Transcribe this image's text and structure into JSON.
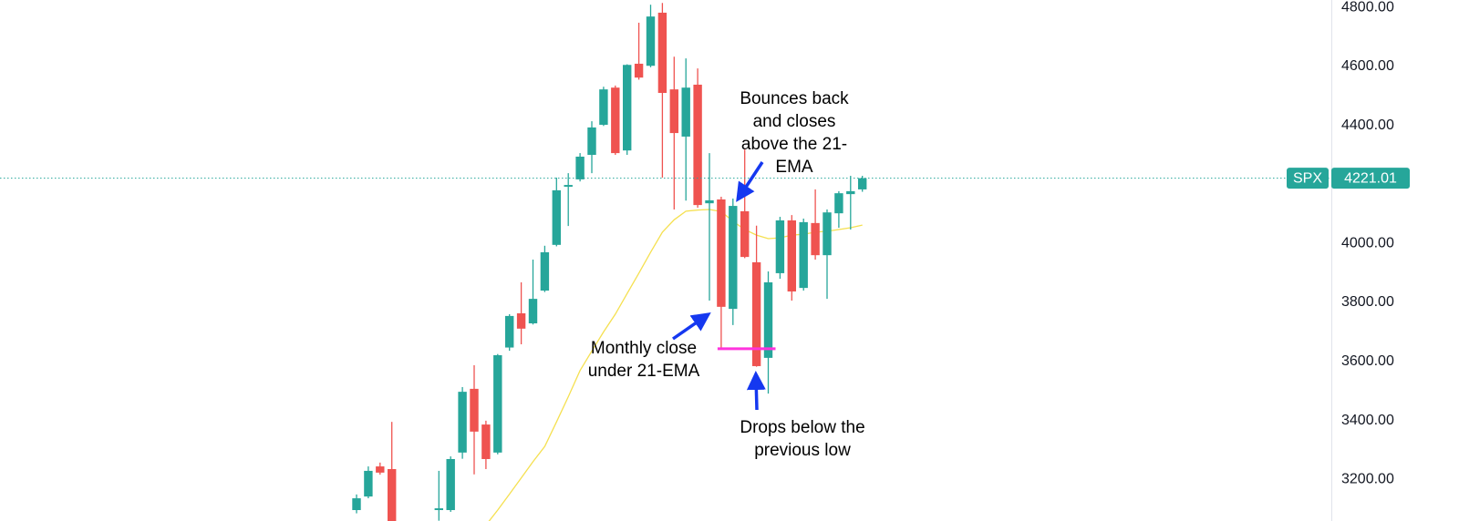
{
  "chart_data": {
    "type": "candlestick",
    "ylim": [
      3059,
      4825
    ],
    "yticks": [
      {
        "value": 3200,
        "label": "3200.00"
      },
      {
        "value": 3400,
        "label": "3400.00"
      },
      {
        "value": 3600,
        "label": "3600.00"
      },
      {
        "value": 3800,
        "label": "3800.00"
      },
      {
        "value": 4000,
        "label": "4000.00"
      },
      {
        "value": 4200,
        "label": "4200.00"
      },
      {
        "value": 4400,
        "label": "4400.00"
      },
      {
        "value": 4600,
        "label": "4600.00"
      },
      {
        "value": 4800,
        "label": "4800.00"
      }
    ],
    "grid": false,
    "series": [
      {
        "name": "SPX",
        "up_color": "#26a69a",
        "down_color": "#ef5350",
        "open": [
          3096,
          3142,
          3244,
          3235,
          null,
          null,
          null,
          3096,
          3096,
          3291,
          3507,
          3386,
          3291,
          3647,
          3763,
          3729,
          3840,
          3995,
          4192,
          4217,
          4300,
          4402,
          4528,
          4315,
          4609,
          4602,
          4782,
          4522,
          4362,
          4538,
          4136,
          4149,
          3778,
          4109,
          3936,
          3612,
          3899,
          4078,
          3849,
          4069,
          3960,
          4102,
          4167,
          4183
        ],
        "high": [
          3149,
          3244,
          3257,
          3395,
          null,
          null,
          null,
          3229,
          3278,
          3513,
          3587,
          3399,
          3625,
          3760,
          3868,
          3945,
          3992,
          4223,
          4238,
          4306,
          4414,
          4531,
          4535,
          4607,
          4748,
          4809,
          4815,
          4633,
          4627,
          4593,
          4306,
          4158,
          4152,
          4318,
          4060,
          3905,
          4090,
          4096,
          4084,
          4183,
          4115,
          4177,
          4229,
          4229
        ],
        "low": [
          3085,
          3136,
          3216,
          3030,
          null,
          null,
          null,
          3060,
          3090,
          3270,
          3217,
          3235,
          3285,
          3636,
          3658,
          3725,
          3835,
          3990,
          4059,
          4210,
          4238,
          4398,
          4300,
          4300,
          4555,
          4597,
          4223,
          4115,
          4145,
          4121,
          3806,
          3643,
          3723,
          3950,
          3582,
          3491,
          3880,
          3806,
          3840,
          3945,
          3812,
          4053,
          4047,
          4175
        ],
        "close": [
          3136,
          3229,
          3223,
          3050,
          null,
          null,
          null,
          3102,
          3269,
          3497,
          3362,
          3269,
          3621,
          3754,
          3711,
          3812,
          3970,
          4180,
          4198,
          4294,
          4393,
          4522,
          4306,
          4605,
          4562,
          4769,
          4510,
          4374,
          4528,
          4130,
          4146,
          3785,
          4127,
          3954,
          3584,
          3868,
          4078,
          3837,
          4072,
          3960,
          4105,
          4170,
          4177,
          4221.01
        ]
      }
    ],
    "ema": {
      "color": "#f5e050",
      "values": [
        null,
        null,
        null,
        null,
        null,
        null,
        null,
        null,
        null,
        null,
        null,
        3045,
        3096,
        3150,
        3205,
        3260,
        3312,
        3395,
        3480,
        3569,
        3635,
        3700,
        3760,
        3830,
        3899,
        3970,
        4038,
        4080,
        4109,
        4113,
        4115,
        4108,
        4075,
        4047,
        4028,
        4016,
        4019,
        4028,
        4031,
        4038,
        4041,
        4047,
        4053,
        4062
      ]
    },
    "level_line": {
      "value": 3643,
      "color": "#ff33dd"
    },
    "annotations": [
      {
        "lines": [
          "Bounces back",
          "and closes",
          "above the 21-",
          "EMA"
        ]
      },
      {
        "lines": [
          "Monthly close",
          "under 21-EMA"
        ]
      },
      {
        "lines": [
          "Drops below the",
          "previous low"
        ]
      }
    ]
  }
}
